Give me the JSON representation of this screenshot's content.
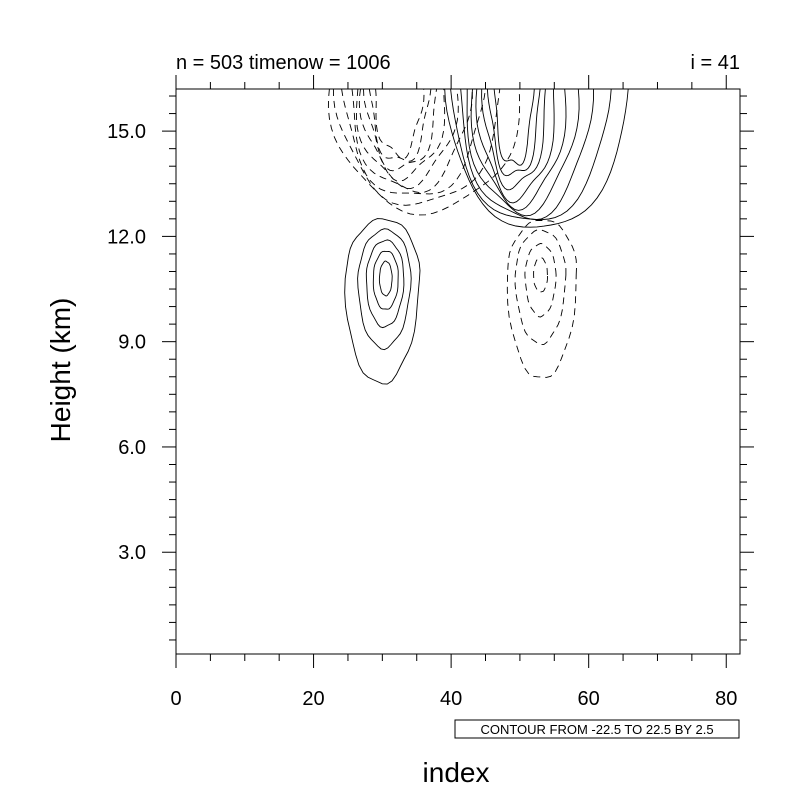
{
  "chart_data": {
    "type": "contour",
    "title_left": "n = 503 timenow = 1006",
    "title_right": "i = 41",
    "xlabel": "index",
    "ylabel": "Height (km)",
    "xlim": [
      0,
      82
    ],
    "ylim": [
      0.1,
      16.2
    ],
    "x_ticks": [
      0,
      20,
      40,
      60,
      80
    ],
    "x_tick_labels": [
      "0",
      "20",
      "40",
      "60",
      "80"
    ],
    "y_ticks": [
      3.0,
      6.0,
      9.0,
      12.0,
      15.0
    ],
    "y_tick_labels": [
      "3.0",
      "6.0",
      "9.0",
      "12.0",
      "15.0"
    ],
    "contour_info": "CONTOUR FROM -22.5 TO 22.5 BY 2.5",
    "contour_min": -22.5,
    "contour_max": 22.5,
    "contour_interval": 2.5,
    "negative_line_style": "dashed",
    "positive_line_style": "solid",
    "features": [
      {
        "sign": "negative",
        "cx": 35,
        "cy": 14.3,
        "levels": 9
      },
      {
        "sign": "positive",
        "cx": 50,
        "cy": 14.4,
        "levels": 9
      },
      {
        "sign": "positive",
        "cx": 30.5,
        "cy": 10.9,
        "levels": 5
      },
      {
        "sign": "negative",
        "cx": 53,
        "cy": 10.9,
        "levels": 4
      }
    ]
  }
}
